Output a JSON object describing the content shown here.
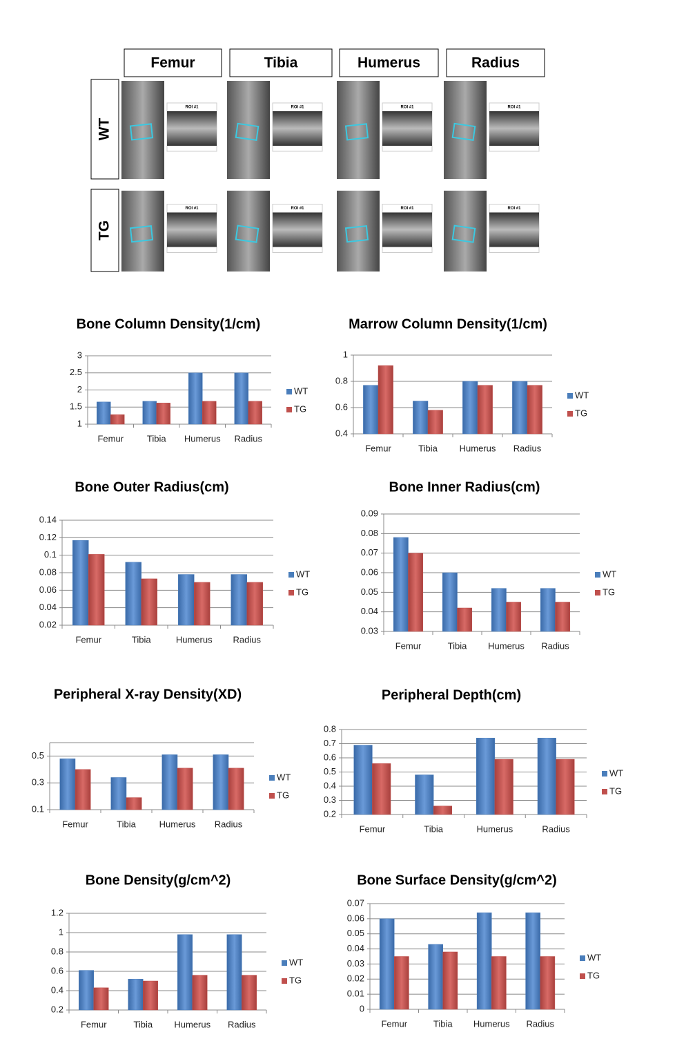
{
  "panel": {
    "columns": [
      "Femur",
      "Tibia",
      "Humerus",
      "Radius"
    ],
    "rows": [
      "WT",
      "TG"
    ],
    "roi_label": "ROI #1"
  },
  "chart_data": [
    {
      "type": "bar",
      "title": "Bone Column Density(1/cm)",
      "categories": [
        "Femur",
        "Tibia",
        "Humerus",
        "Radius"
      ],
      "series": [
        {
          "name": "WT",
          "color": "#4a7ebb",
          "values": [
            1.65,
            1.67,
            2.5,
            2.5
          ]
        },
        {
          "name": "TG",
          "color": "#c0504d",
          "values": [
            1.28,
            1.62,
            1.67,
            1.67
          ]
        }
      ],
      "ylim": [
        1,
        3
      ],
      "yticks": [
        1,
        1.5,
        2,
        2.5,
        3
      ],
      "grid": true,
      "legend": "right"
    },
    {
      "type": "bar",
      "title": "Marrow Column Density(1/cm)",
      "categories": [
        "Femur",
        "Tibia",
        "Humerus",
        "Radius"
      ],
      "series": [
        {
          "name": "WT",
          "color": "#4a7ebb",
          "values": [
            0.77,
            0.65,
            0.8,
            0.8
          ]
        },
        {
          "name": "TG",
          "color": "#c0504d",
          "values": [
            0.92,
            0.58,
            0.77,
            0.77
          ]
        }
      ],
      "ylim": [
        0.4,
        1
      ],
      "yticks": [
        0.4,
        0.6,
        0.8,
        1
      ],
      "grid": true,
      "legend": "right"
    },
    {
      "type": "bar",
      "title": "Bone Outer Radius(cm)",
      "categories": [
        "Femur",
        "Tibia",
        "Humerus",
        "Radius"
      ],
      "series": [
        {
          "name": "WT",
          "color": "#4a7ebb",
          "values": [
            0.117,
            0.092,
            0.078,
            0.078
          ]
        },
        {
          "name": "TG",
          "color": "#c0504d",
          "values": [
            0.101,
            0.073,
            0.069,
            0.069
          ]
        }
      ],
      "ylim": [
        0.02,
        0.14
      ],
      "yticks": [
        0.02,
        0.04,
        0.06,
        0.08,
        0.1,
        0.12,
        0.14
      ],
      "grid": true,
      "legend": "right"
    },
    {
      "type": "bar",
      "title": "Bone Inner Radius(cm)",
      "categories": [
        "Femur",
        "Tibia",
        "Humerus",
        "Radius"
      ],
      "series": [
        {
          "name": "WT",
          "color": "#4a7ebb",
          "values": [
            0.078,
            0.06,
            0.052,
            0.052
          ]
        },
        {
          "name": "TG",
          "color": "#c0504d",
          "values": [
            0.07,
            0.042,
            0.045,
            0.045
          ]
        }
      ],
      "ylim": [
        0.03,
        0.09
      ],
      "yticks": [
        0.03,
        0.04,
        0.05,
        0.06,
        0.07,
        0.08,
        0.09
      ],
      "grid": true,
      "legend": "right"
    },
    {
      "type": "bar",
      "title": "Peripheral X-ray Density(XD)",
      "categories": [
        "Femur",
        "Tibia",
        "Humerus",
        "Radius"
      ],
      "series": [
        {
          "name": "WT",
          "color": "#4a7ebb",
          "values": [
            0.48,
            0.34,
            0.51,
            0.51
          ]
        },
        {
          "name": "TG",
          "color": "#c0504d",
          "values": [
            0.4,
            0.19,
            0.41,
            0.41
          ]
        }
      ],
      "ylim": [
        0.1,
        0.6
      ],
      "yticks": [
        0.1,
        0.3,
        0.5
      ],
      "grid": true,
      "legend": "right"
    },
    {
      "type": "bar",
      "title": "Peripheral Depth(cm)",
      "categories": [
        "Femur",
        "Tibia",
        "Humerus",
        "Radius"
      ],
      "series": [
        {
          "name": "WT",
          "color": "#4a7ebb",
          "values": [
            0.69,
            0.48,
            0.74,
            0.74
          ]
        },
        {
          "name": "TG",
          "color": "#c0504d",
          "values": [
            0.56,
            0.26,
            0.59,
            0.59
          ]
        }
      ],
      "ylim": [
        0.2,
        0.8
      ],
      "yticks": [
        0.2,
        0.3,
        0.4,
        0.5,
        0.6,
        0.7,
        0.8
      ],
      "grid": true,
      "legend": "right"
    },
    {
      "type": "bar",
      "title": "Bone Density(g/cm^2)",
      "categories": [
        "Femur",
        "Tibia",
        "Humerus",
        "Radius"
      ],
      "series": [
        {
          "name": "WT",
          "color": "#4a7ebb",
          "values": [
            0.61,
            0.52,
            0.98,
            0.98
          ]
        },
        {
          "name": "TG",
          "color": "#c0504d",
          "values": [
            0.43,
            0.5,
            0.56,
            0.56
          ]
        }
      ],
      "ylim": [
        0.2,
        1.2
      ],
      "yticks": [
        0.2,
        0.4,
        0.6,
        0.8,
        1,
        1.2
      ],
      "grid": true,
      "legend": "right"
    },
    {
      "type": "bar",
      "title": "Bone Surface Density(g/cm^2)",
      "categories": [
        "Femur",
        "Tibia",
        "Humerus",
        "Radius"
      ],
      "series": [
        {
          "name": "WT",
          "color": "#4a7ebb",
          "values": [
            0.06,
            0.043,
            0.064,
            0.064
          ]
        },
        {
          "name": "TG",
          "color": "#c0504d",
          "values": [
            0.035,
            0.038,
            0.035,
            0.035
          ]
        }
      ],
      "ylim": [
        0,
        0.07
      ],
      "yticks": [
        0,
        0.01,
        0.02,
        0.03,
        0.04,
        0.05,
        0.06,
        0.07
      ],
      "grid": true,
      "legend": "right"
    }
  ]
}
